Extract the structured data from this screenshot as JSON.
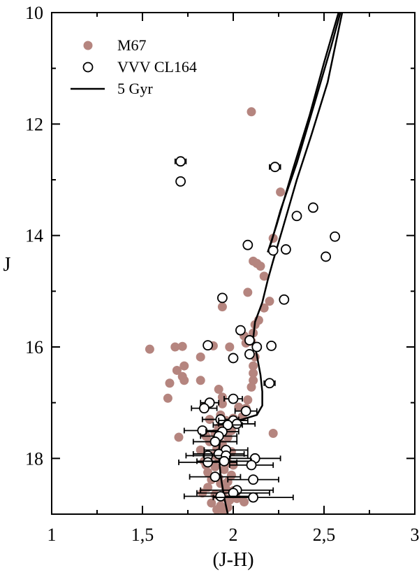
{
  "chart_data": {
    "type": "scatter",
    "title": "",
    "xlabel": "(J-H)",
    "ylabel": "J",
    "xlim": [
      1,
      3
    ],
    "ylim": [
      19,
      10
    ],
    "y_inverted": true,
    "xticks": [
      1,
      1.5,
      2,
      2.5,
      3
    ],
    "xtick_labels": [
      "1",
      "1,5",
      "2",
      "2,5",
      "3"
    ],
    "yticks": [
      10,
      12,
      14,
      16,
      18
    ],
    "ytick_labels": [
      "10",
      "12",
      "14",
      "16",
      "18"
    ],
    "grid": false,
    "legend_position": "top-left",
    "colors": {
      "m67": "#b5857f",
      "cl164": "#000000",
      "isochrone": "#000000",
      "axis": "#000000"
    },
    "series": [
      {
        "name": "M67",
        "kind": "scatter-filled",
        "points": [
          [
            2.1,
            11.78
          ],
          [
            2.26,
            13.22
          ],
          [
            2.22,
            14.05
          ],
          [
            2.11,
            14.46
          ],
          [
            2.13,
            14.5
          ],
          [
            2.15,
            14.55
          ],
          [
            2.17,
            14.73
          ],
          [
            2.08,
            15.02
          ],
          [
            2.2,
            15.18
          ],
          [
            1.94,
            15.28
          ],
          [
            2.17,
            15.3
          ],
          [
            2.14,
            15.52
          ],
          [
            2.12,
            15.6
          ],
          [
            2.11,
            15.75
          ],
          [
            2.06,
            15.8
          ],
          [
            2.1,
            15.9
          ],
          [
            2.07,
            15.93
          ],
          [
            1.54,
            16.04
          ],
          [
            1.68,
            16.0
          ],
          [
            1.72,
            15.99
          ],
          [
            1.89,
            15.98
          ],
          [
            1.98,
            16.0
          ],
          [
            2.12,
            16.18
          ],
          [
            2.11,
            16.34
          ],
          [
            1.73,
            16.34
          ],
          [
            1.69,
            16.42
          ],
          [
            1.82,
            16.18
          ],
          [
            2.11,
            16.47
          ],
          [
            2.11,
            16.6
          ],
          [
            1.65,
            16.65
          ],
          [
            1.73,
            16.6
          ],
          [
            1.72,
            16.53
          ],
          [
            1.82,
            16.6
          ],
          [
            1.92,
            16.76
          ],
          [
            2.1,
            16.72
          ],
          [
            1.64,
            16.92
          ],
          [
            1.94,
            16.9
          ],
          [
            2.08,
            16.95
          ],
          [
            2.07,
            17.1
          ],
          [
            2.03,
            17.08
          ],
          [
            1.94,
            17.02
          ],
          [
            1.84,
            17.08
          ],
          [
            1.93,
            17.22
          ],
          [
            1.87,
            17.3
          ],
          [
            1.96,
            17.32
          ],
          [
            2.0,
            17.28
          ],
          [
            2.05,
            17.25
          ],
          [
            1.92,
            17.45
          ],
          [
            1.99,
            17.5
          ],
          [
            1.85,
            17.6
          ],
          [
            1.7,
            17.62
          ],
          [
            2.22,
            17.55
          ],
          [
            1.87,
            17.7
          ],
          [
            1.94,
            17.75
          ],
          [
            1.91,
            17.82
          ],
          [
            1.99,
            17.88
          ],
          [
            1.88,
            17.95
          ],
          [
            1.92,
            18.0
          ],
          [
            1.84,
            18.05
          ],
          [
            1.97,
            18.08
          ],
          [
            1.9,
            18.15
          ],
          [
            1.86,
            18.25
          ],
          [
            1.95,
            18.2
          ],
          [
            1.99,
            18.3
          ],
          [
            1.88,
            18.38
          ],
          [
            1.93,
            18.45
          ],
          [
            1.97,
            18.42
          ],
          [
            1.86,
            18.52
          ],
          [
            1.96,
            18.55
          ],
          [
            2.0,
            18.58
          ],
          [
            1.9,
            18.65
          ],
          [
            1.95,
            18.7
          ],
          [
            1.98,
            18.75
          ],
          [
            2.06,
            18.78
          ],
          [
            1.88,
            18.8
          ],
          [
            1.93,
            18.85
          ],
          [
            1.97,
            18.88
          ],
          [
            1.91,
            18.92
          ],
          [
            1.95,
            18.96
          ],
          [
            2.02,
            18.72
          ],
          [
            1.83,
            18.62
          ],
          [
            1.92,
            18.35
          ],
          [
            2.0,
            18.12
          ],
          [
            1.96,
            17.98
          ],
          [
            1.9,
            17.55
          ],
          [
            1.97,
            17.62
          ],
          [
            1.82,
            17.85
          ],
          [
            1.85,
            18.12
          ]
        ]
      },
      {
        "name": "VVV CL164",
        "kind": "scatter-open",
        "points": [
          {
            "x": 1.71,
            "y": 12.67,
            "xerr": 0.03
          },
          {
            "x": 1.71,
            "y": 13.03
          },
          {
            "x": 2.23,
            "y": 12.77,
            "xerr": 0.03
          },
          {
            "x": 2.35,
            "y": 13.65
          },
          {
            "x": 2.44,
            "y": 13.5,
            "xerr": 0.02
          },
          {
            "x": 2.56,
            "y": 14.02
          },
          {
            "x": 2.51,
            "y": 14.38
          },
          {
            "x": 2.08,
            "y": 14.17
          },
          {
            "x": 2.22,
            "y": 14.27
          },
          {
            "x": 2.29,
            "y": 14.25
          },
          {
            "x": 1.94,
            "y": 15.12
          },
          {
            "x": 2.28,
            "y": 15.15
          },
          {
            "x": 2.04,
            "y": 15.7
          },
          {
            "x": 2.09,
            "y": 15.88
          },
          {
            "x": 1.86,
            "y": 15.97
          },
          {
            "x": 2.13,
            "y": 16.0
          },
          {
            "x": 2.21,
            "y": 15.98
          },
          {
            "x": 2.09,
            "y": 16.13
          },
          {
            "x": 2.0,
            "y": 16.2,
            "xerr": 0.02
          },
          {
            "x": 2.2,
            "y": 16.65,
            "xerr": 0.03
          },
          {
            "x": 2.0,
            "y": 16.93,
            "xerr": 0.05
          },
          {
            "x": 1.87,
            "y": 17.0,
            "xerr": 0.05
          },
          {
            "x": 2.07,
            "y": 17.15,
            "xerr": 0.06
          },
          {
            "x": 1.84,
            "y": 17.1,
            "xerr": 0.07
          },
          {
            "x": 1.93,
            "y": 17.3,
            "xerr": 0.1
          },
          {
            "x": 2.0,
            "y": 17.32,
            "xerr": 0.08
          },
          {
            "x": 2.02,
            "y": 17.38,
            "xerr": 0.1
          },
          {
            "x": 1.97,
            "y": 17.4,
            "xerr": 0.08
          },
          {
            "x": 1.83,
            "y": 17.5,
            "xerr": 0.1
          },
          {
            "x": 1.94,
            "y": 17.52,
            "xerr": 0.09
          },
          {
            "x": 1.92,
            "y": 17.6,
            "xerr": 0.1
          },
          {
            "x": 1.9,
            "y": 17.7,
            "xerr": 0.12
          },
          {
            "x": 1.96,
            "y": 17.85,
            "xerr": 0.12
          },
          {
            "x": 1.86,
            "y": 17.95,
            "xerr": 0.12
          },
          {
            "x": 1.92,
            "y": 17.92,
            "xerr": 0.14
          },
          {
            "x": 1.96,
            "y": 17.95,
            "xerr": 0.12
          },
          {
            "x": 2.12,
            "y": 18.0,
            "xerr": 0.14
          },
          {
            "x": 1.86,
            "y": 18.07,
            "xerr": 0.16
          },
          {
            "x": 1.95,
            "y": 18.05,
            "xerr": 0.15
          },
          {
            "x": 2.1,
            "y": 18.12,
            "xerr": 0.12
          },
          {
            "x": 1.9,
            "y": 18.33,
            "xerr": 0.14
          },
          {
            "x": 2.11,
            "y": 18.38,
            "xerr": 0.14
          },
          {
            "x": 2.02,
            "y": 18.57,
            "xerr": 0.2
          },
          {
            "x": 2.0,
            "y": 18.62,
            "xerr": 0.2
          },
          {
            "x": 1.93,
            "y": 18.68,
            "xerr": 0.2
          },
          {
            "x": 2.11,
            "y": 18.7,
            "xerr": 0.22
          }
        ]
      },
      {
        "name": "5 Gyr",
        "kind": "line",
        "branches": [
          [
            [
              1.97,
              19.0
            ],
            [
              1.95,
              18.7
            ],
            [
              1.93,
              18.3
            ],
            [
              1.92,
              17.9
            ],
            [
              1.93,
              17.6
            ],
            [
              1.97,
              17.35
            ],
            [
              2.05,
              17.3
            ],
            [
              2.13,
              17.22
            ],
            [
              2.16,
              17.05
            ],
            [
              2.16,
              16.8
            ],
            [
              2.15,
              16.5
            ],
            [
              2.13,
              16.15
            ],
            [
              2.11,
              15.85
            ],
            [
              2.12,
              15.55
            ],
            [
              2.16,
              15.2
            ],
            [
              2.19,
              14.8
            ],
            [
              2.22,
              14.45
            ],
            [
              2.27,
              13.9
            ],
            [
              2.35,
              13.0
            ],
            [
              2.43,
              12.2
            ],
            [
              2.52,
              11.25
            ],
            [
              2.6,
              10.0
            ]
          ],
          [
            [
              2.19,
              14.3
            ],
            [
              2.21,
              14.12
            ],
            [
              2.26,
              13.55
            ],
            [
              2.35,
              12.7
            ],
            [
              2.45,
              11.6
            ],
            [
              2.54,
              10.6
            ],
            [
              2.59,
              10.0
            ]
          ],
          [
            [
              2.19,
              14.3
            ],
            [
              2.24,
              13.8
            ],
            [
              2.33,
              12.8
            ],
            [
              2.42,
              11.85
            ],
            [
              2.5,
              10.9
            ],
            [
              2.58,
              10.0
            ]
          ]
        ]
      }
    ]
  }
}
